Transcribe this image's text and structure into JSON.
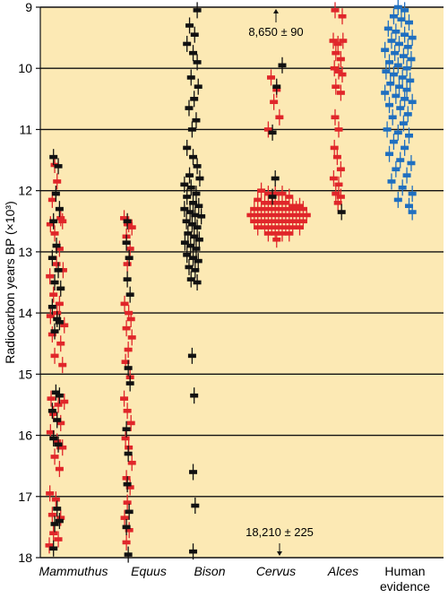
{
  "chart_data": {
    "type": "scatter",
    "title": "",
    "ylabel": "Radiocarbon years BP (×10³)",
    "ylim": [
      9,
      18
    ],
    "y_inverted": true,
    "yticks": [
      9,
      10,
      11,
      12,
      13,
      14,
      15,
      16,
      17,
      18
    ],
    "grid": "horizontal",
    "background": "#fce9b4",
    "colors": {
      "red": "#e0262a",
      "black": "#111111",
      "blue": "#1f6fc0"
    },
    "categories": [
      {
        "name": "Mammuthus",
        "italic": true
      },
      {
        "name": "Equus",
        "italic": true
      },
      {
        "name": "Bison",
        "italic": true
      },
      {
        "name": "Cervus",
        "italic": true
      },
      {
        "name": "Alces",
        "italic": true
      },
      {
        "name": "Human evidence",
        "lines": [
          "Human",
          "evidence"
        ],
        "italic": false
      }
    ],
    "annotations": [
      {
        "text": "8,650 ± 90",
        "category": "Cervus",
        "y": 9.0,
        "arrow": "up"
      },
      {
        "text": "18,210 ± 225",
        "category": "Cervus",
        "y": 18.0,
        "arrow": "down"
      }
    ],
    "series": [
      {
        "category": "Mammuthus",
        "red": [
          [
            0.12,
            11.58
          ],
          [
            0.16,
            11.85
          ],
          [
            0.08,
            12.15
          ],
          [
            0.22,
            12.45
          ],
          [
            0.05,
            12.55
          ],
          [
            0.25,
            12.5
          ],
          [
            0.12,
            12.7
          ],
          [
            0.2,
            12.95
          ],
          [
            0.04,
            13.4
          ],
          [
            0.15,
            13.2
          ],
          [
            0.26,
            13.3
          ],
          [
            0.1,
            13.7
          ],
          [
            0.2,
            13.85
          ],
          [
            0.05,
            14.05
          ],
          [
            0.16,
            14.0
          ],
          [
            0.28,
            14.2
          ],
          [
            0.08,
            14.35
          ],
          [
            0.22,
            14.5
          ],
          [
            0.12,
            14.7
          ],
          [
            0.25,
            14.85
          ],
          [
            0.06,
            15.4
          ],
          [
            0.18,
            15.5
          ],
          [
            0.28,
            15.45
          ],
          [
            0.1,
            15.65
          ],
          [
            0.22,
            15.8
          ],
          [
            0.05,
            15.95
          ],
          [
            0.16,
            16.1
          ],
          [
            0.25,
            16.2
          ],
          [
            0.12,
            16.35
          ],
          [
            0.2,
            16.55
          ],
          [
            0.04,
            16.95
          ],
          [
            0.14,
            17.05
          ],
          [
            0.08,
            17.3
          ],
          [
            0.22,
            17.35
          ],
          [
            0.1,
            17.6
          ],
          [
            0.18,
            17.7
          ],
          [
            0.03,
            17.8
          ]
        ],
        "black": [
          [
            0.1,
            11.45
          ],
          [
            0.18,
            11.6
          ],
          [
            0.14,
            12.05
          ],
          [
            0.2,
            12.3
          ],
          [
            0.1,
            12.5
          ],
          [
            0.15,
            12.9
          ],
          [
            0.08,
            13.1
          ],
          [
            0.18,
            13.3
          ],
          [
            0.12,
            13.5
          ],
          [
            0.22,
            13.6
          ],
          [
            0.08,
            13.9
          ],
          [
            0.16,
            14.1
          ],
          [
            0.2,
            14.15
          ],
          [
            0.12,
            14.3
          ],
          [
            0.14,
            15.3
          ],
          [
            0.2,
            15.35
          ],
          [
            0.08,
            15.6
          ],
          [
            0.16,
            15.75
          ],
          [
            0.1,
            16.05
          ],
          [
            0.18,
            16.15
          ],
          [
            0.16,
            17.2
          ],
          [
            0.2,
            17.4
          ],
          [
            0.12,
            17.45
          ],
          [
            0.1,
            17.85
          ]
        ]
      },
      {
        "category": "Equus",
        "red": [
          [
            0.05,
            12.45
          ],
          [
            0.15,
            12.55
          ],
          [
            0.22,
            12.6
          ],
          [
            0.1,
            12.75
          ],
          [
            0.18,
            12.95
          ],
          [
            0.12,
            13.2
          ],
          [
            0.06,
            13.85
          ],
          [
            0.15,
            14.0
          ],
          [
            0.2,
            14.1
          ],
          [
            0.1,
            14.25
          ],
          [
            0.22,
            14.4
          ],
          [
            0.14,
            14.6
          ],
          [
            0.08,
            14.8
          ],
          [
            0.18,
            15.05
          ],
          [
            0.05,
            15.4
          ],
          [
            0.12,
            15.6
          ],
          [
            0.2,
            15.8
          ],
          [
            0.08,
            16.05
          ],
          [
            0.15,
            16.2
          ],
          [
            0.22,
            16.45
          ],
          [
            0.1,
            16.7
          ],
          [
            0.18,
            16.85
          ],
          [
            0.12,
            17.1
          ],
          [
            0.06,
            17.35
          ],
          [
            0.16,
            17.55
          ],
          [
            0.1,
            17.75
          ]
        ],
        "black": [
          [
            0.12,
            12.5
          ],
          [
            0.1,
            12.85
          ],
          [
            0.16,
            13.1
          ],
          [
            0.12,
            13.45
          ],
          [
            0.18,
            13.7
          ],
          [
            0.14,
            14.9
          ],
          [
            0.18,
            15.15
          ],
          [
            0.1,
            15.9
          ],
          [
            0.14,
            16.3
          ],
          [
            0.12,
            16.8
          ],
          [
            0.16,
            17.25
          ],
          [
            0.1,
            17.5
          ],
          [
            0.14,
            17.95
          ]
        ]
      },
      {
        "category": "Bison",
        "black": [
          [
            0.3,
            9.05
          ],
          [
            0.15,
            9.3
          ],
          [
            0.25,
            9.45
          ],
          [
            0.1,
            9.6
          ],
          [
            0.22,
            9.75
          ],
          [
            0.3,
            9.9
          ],
          [
            0.18,
            10.15
          ],
          [
            0.32,
            10.3
          ],
          [
            0.24,
            10.5
          ],
          [
            0.14,
            10.65
          ],
          [
            0.28,
            10.85
          ],
          [
            0.2,
            11.0
          ],
          [
            0.1,
            11.3
          ],
          [
            0.22,
            11.45
          ],
          [
            0.3,
            11.6
          ],
          [
            0.15,
            11.75
          ],
          [
            0.35,
            11.8
          ],
          [
            0.05,
            11.9
          ],
          [
            0.18,
            11.95
          ],
          [
            0.28,
            12.05
          ],
          [
            0.1,
            12.1
          ],
          [
            0.22,
            12.2
          ],
          [
            0.33,
            12.25
          ],
          [
            0.05,
            12.3
          ],
          [
            0.16,
            12.35
          ],
          [
            0.26,
            12.4
          ],
          [
            0.38,
            12.42
          ],
          [
            0.09,
            12.5
          ],
          [
            0.2,
            12.55
          ],
          [
            0.3,
            12.6
          ],
          [
            0.12,
            12.7
          ],
          [
            0.24,
            12.75
          ],
          [
            0.34,
            12.8
          ],
          [
            0.06,
            12.85
          ],
          [
            0.17,
            12.9
          ],
          [
            0.28,
            12.95
          ],
          [
            0.1,
            13.05
          ],
          [
            0.22,
            13.1
          ],
          [
            0.32,
            13.15
          ],
          [
            0.14,
            13.25
          ],
          [
            0.26,
            13.3
          ],
          [
            0.18,
            13.45
          ],
          [
            0.3,
            13.5
          ],
          [
            0.2,
            14.7
          ],
          [
            0.24,
            15.35
          ],
          [
            0.22,
            16.6
          ],
          [
            0.26,
            17.15
          ],
          [
            0.22,
            17.9
          ]
        ],
        "red": []
      },
      {
        "category": "Cervus",
        "black": [
          [
            0.5,
            9.95
          ],
          [
            0.42,
            10.3
          ],
          [
            0.36,
            11.05
          ],
          [
            0.4,
            11.8
          ],
          [
            0.36,
            12.1
          ]
        ],
        "red": [
          [
            0.34,
            10.15
          ],
          [
            0.42,
            10.35
          ],
          [
            0.38,
            10.55
          ],
          [
            0.46,
            10.8
          ],
          [
            0.3,
            11.0
          ],
          [
            0.2,
            12.0
          ],
          [
            0.3,
            12.05
          ],
          [
            0.4,
            12.05
          ],
          [
            0.5,
            12.05
          ],
          [
            0.6,
            12.1
          ],
          [
            0.15,
            12.15
          ],
          [
            0.25,
            12.2
          ],
          [
            0.35,
            12.2
          ],
          [
            0.45,
            12.2
          ],
          [
            0.55,
            12.2
          ],
          [
            0.65,
            12.25
          ],
          [
            0.75,
            12.25
          ],
          [
            0.1,
            12.3
          ],
          [
            0.2,
            12.3
          ],
          [
            0.3,
            12.3
          ],
          [
            0.4,
            12.3
          ],
          [
            0.5,
            12.3
          ],
          [
            0.6,
            12.3
          ],
          [
            0.7,
            12.3
          ],
          [
            0.8,
            12.3
          ],
          [
            0.05,
            12.4
          ],
          [
            0.15,
            12.4
          ],
          [
            0.25,
            12.4
          ],
          [
            0.35,
            12.4
          ],
          [
            0.45,
            12.4
          ],
          [
            0.55,
            12.4
          ],
          [
            0.65,
            12.4
          ],
          [
            0.75,
            12.4
          ],
          [
            0.85,
            12.4
          ],
          [
            0.1,
            12.5
          ],
          [
            0.2,
            12.5
          ],
          [
            0.3,
            12.5
          ],
          [
            0.4,
            12.5
          ],
          [
            0.5,
            12.5
          ],
          [
            0.6,
            12.5
          ],
          [
            0.7,
            12.5
          ],
          [
            0.8,
            12.5
          ],
          [
            0.15,
            12.6
          ],
          [
            0.25,
            12.6
          ],
          [
            0.35,
            12.6
          ],
          [
            0.45,
            12.6
          ],
          [
            0.55,
            12.6
          ],
          [
            0.65,
            12.6
          ],
          [
            0.75,
            12.6
          ],
          [
            0.3,
            12.7
          ],
          [
            0.4,
            12.7
          ],
          [
            0.5,
            12.7
          ],
          [
            0.6,
            12.7
          ],
          [
            0.42,
            12.8
          ]
        ]
      },
      {
        "category": "Alces",
        "red": [
          [
            0.1,
            9.05
          ],
          [
            0.3,
            9.15
          ],
          [
            0.05,
            9.55
          ],
          [
            0.18,
            9.6
          ],
          [
            0.32,
            9.55
          ],
          [
            0.12,
            9.75
          ],
          [
            0.26,
            9.85
          ],
          [
            0.08,
            10.0
          ],
          [
            0.2,
            10.05
          ],
          [
            0.3,
            10.1
          ],
          [
            0.12,
            10.3
          ],
          [
            0.26,
            10.4
          ],
          [
            0.1,
            10.8
          ],
          [
            0.2,
            11.0
          ],
          [
            0.08,
            11.3
          ],
          [
            0.16,
            11.45
          ],
          [
            0.26,
            11.65
          ],
          [
            0.06,
            11.8
          ],
          [
            0.2,
            11.9
          ],
          [
            0.12,
            12.05
          ],
          [
            0.26,
            12.1
          ],
          [
            0.18,
            12.2
          ]
        ],
        "black": [
          [
            0.28,
            12.35
          ]
        ]
      },
      {
        "category": "Human evidence",
        "blue": [
          [
            0.3,
            9.0
          ],
          [
            0.42,
            9.05
          ],
          [
            0.22,
            9.15
          ],
          [
            0.36,
            9.2
          ],
          [
            0.5,
            9.25
          ],
          [
            0.12,
            9.35
          ],
          [
            0.26,
            9.4
          ],
          [
            0.42,
            9.45
          ],
          [
            0.56,
            9.5
          ],
          [
            0.18,
            9.55
          ],
          [
            0.32,
            9.6
          ],
          [
            0.48,
            9.65
          ],
          [
            0.06,
            9.7
          ],
          [
            0.24,
            9.75
          ],
          [
            0.4,
            9.8
          ],
          [
            0.54,
            9.85
          ],
          [
            0.14,
            9.9
          ],
          [
            0.3,
            9.95
          ],
          [
            0.46,
            10.0
          ],
          [
            0.08,
            10.05
          ],
          [
            0.22,
            10.1
          ],
          [
            0.38,
            10.15
          ],
          [
            0.52,
            10.2
          ],
          [
            0.16,
            10.25
          ],
          [
            0.32,
            10.3
          ],
          [
            0.46,
            10.35
          ],
          [
            0.06,
            10.4
          ],
          [
            0.26,
            10.45
          ],
          [
            0.42,
            10.5
          ],
          [
            0.56,
            10.55
          ],
          [
            0.14,
            10.6
          ],
          [
            0.34,
            10.65
          ],
          [
            0.48,
            10.75
          ],
          [
            0.2,
            10.8
          ],
          [
            0.4,
            10.9
          ],
          [
            0.1,
            11.0
          ],
          [
            0.3,
            11.05
          ],
          [
            0.5,
            11.1
          ],
          [
            0.22,
            11.2
          ],
          [
            0.42,
            11.3
          ],
          [
            0.14,
            11.4
          ],
          [
            0.34,
            11.5
          ],
          [
            0.54,
            11.55
          ],
          [
            0.26,
            11.65
          ],
          [
            0.46,
            11.75
          ],
          [
            0.18,
            11.85
          ],
          [
            0.38,
            11.95
          ],
          [
            0.56,
            12.05
          ],
          [
            0.3,
            12.15
          ],
          [
            0.5,
            12.25
          ],
          [
            0.56,
            12.35
          ]
        ]
      }
    ]
  }
}
